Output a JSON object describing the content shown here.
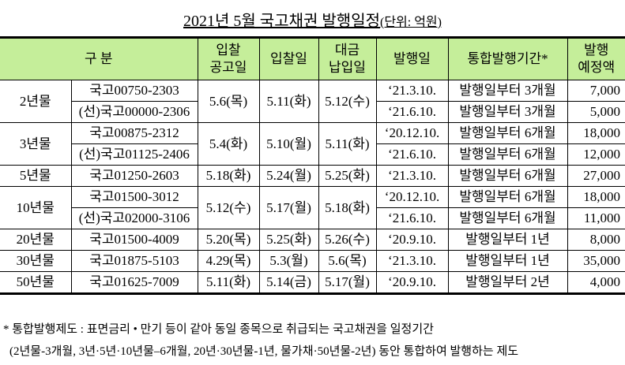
{
  "title": "2021년 5월 국고채권 발행일정",
  "unit": "(단위: 억원)",
  "header": {
    "category": "구 분",
    "announce": [
      "입찰",
      "공고일"
    ],
    "bid": "입찰일",
    "payment": [
      "대금",
      "납입일"
    ],
    "issue": "발행일",
    "period": "통합발행기간*",
    "amount": [
      "발행",
      "예정액"
    ]
  },
  "groups": [
    {
      "term": "2년물",
      "announce": "5.6(목)",
      "bid": "5.11(화)",
      "payment": "5.12(수)",
      "rows": [
        {
          "code": "국고00750-2303",
          "issue": "‘21.3.10.",
          "period": "발행일부터 3개월",
          "amount": "7,000"
        },
        {
          "code": "(선)국고00000-2306",
          "issue": "‘21.6.10.",
          "period": "발행일부터 3개월",
          "amount": "5,000"
        }
      ]
    },
    {
      "term": "3년물",
      "announce": "5.4(화)",
      "bid": "5.10(월)",
      "payment": "5.11(화)",
      "rows": [
        {
          "code": "국고00875-2312",
          "issue": "‘20.12.10.",
          "period": "발행일부터 6개월",
          "amount": "18,000"
        },
        {
          "code": "(선)국고01125-2406",
          "issue": "‘21.6.10.",
          "period": "발행일부터 6개월",
          "amount": "12,000"
        }
      ]
    },
    {
      "term": "5년물",
      "announce": "5.18(화)",
      "bid": "5.24(월)",
      "payment": "5.25(화)",
      "rows": [
        {
          "code": "국고01250-2603",
          "issue": "‘21.3.10.",
          "period": "발행일부터 6개월",
          "amount": "27,000"
        }
      ]
    },
    {
      "term": "10년물",
      "announce": "5.12(수)",
      "bid": "5.17(월)",
      "payment": "5.18(화)",
      "rows": [
        {
          "code": "국고01500-3012",
          "issue": "‘20.12.10.",
          "period": "발행일부터 6개월",
          "amount": "18,000"
        },
        {
          "code": "(선)국고02000-3106",
          "issue": "‘21.6.10.",
          "period": "발행일부터 6개월",
          "amount": "11,000"
        }
      ]
    },
    {
      "term": "20년물",
      "announce": "5.20(목)",
      "bid": "5.25(화)",
      "payment": "5.26(수)",
      "rows": [
        {
          "code": "국고01500-4009",
          "issue": "‘20.9.10.",
          "period": "발행일부터 1년",
          "amount": "8,000"
        }
      ]
    },
    {
      "term": "30년물",
      "announce": "4.29(목)",
      "bid": "5.3(월)",
      "payment": "5.6(목)",
      "rows": [
        {
          "code": "국고01875-5103",
          "issue": "‘21.3.10.",
          "period": "발행일부터 1년",
          "amount": "35,000"
        }
      ]
    },
    {
      "term": "50년물",
      "announce": "5.11(화)",
      "bid": "5.14(금)",
      "payment": "5.17(월)",
      "rows": [
        {
          "code": "국고01625-7009",
          "issue": "‘20.9.10.",
          "period": "발행일부터 2년",
          "amount": "4,000"
        }
      ]
    }
  ],
  "notes": [
    "* 통합발행제도 : 표면금리 • 만기 등이 같아 동일 종목으로 취급되는 국고채권을 일정기간",
    "(2년물-3개월, 3년·5년·10년물–6개월, 20년·30년물-1년, 물가채·50년물-2년) 동안 통합하여 발행하는 제도"
  ],
  "colors": {
    "header_bg": "#c5ee9a"
  }
}
